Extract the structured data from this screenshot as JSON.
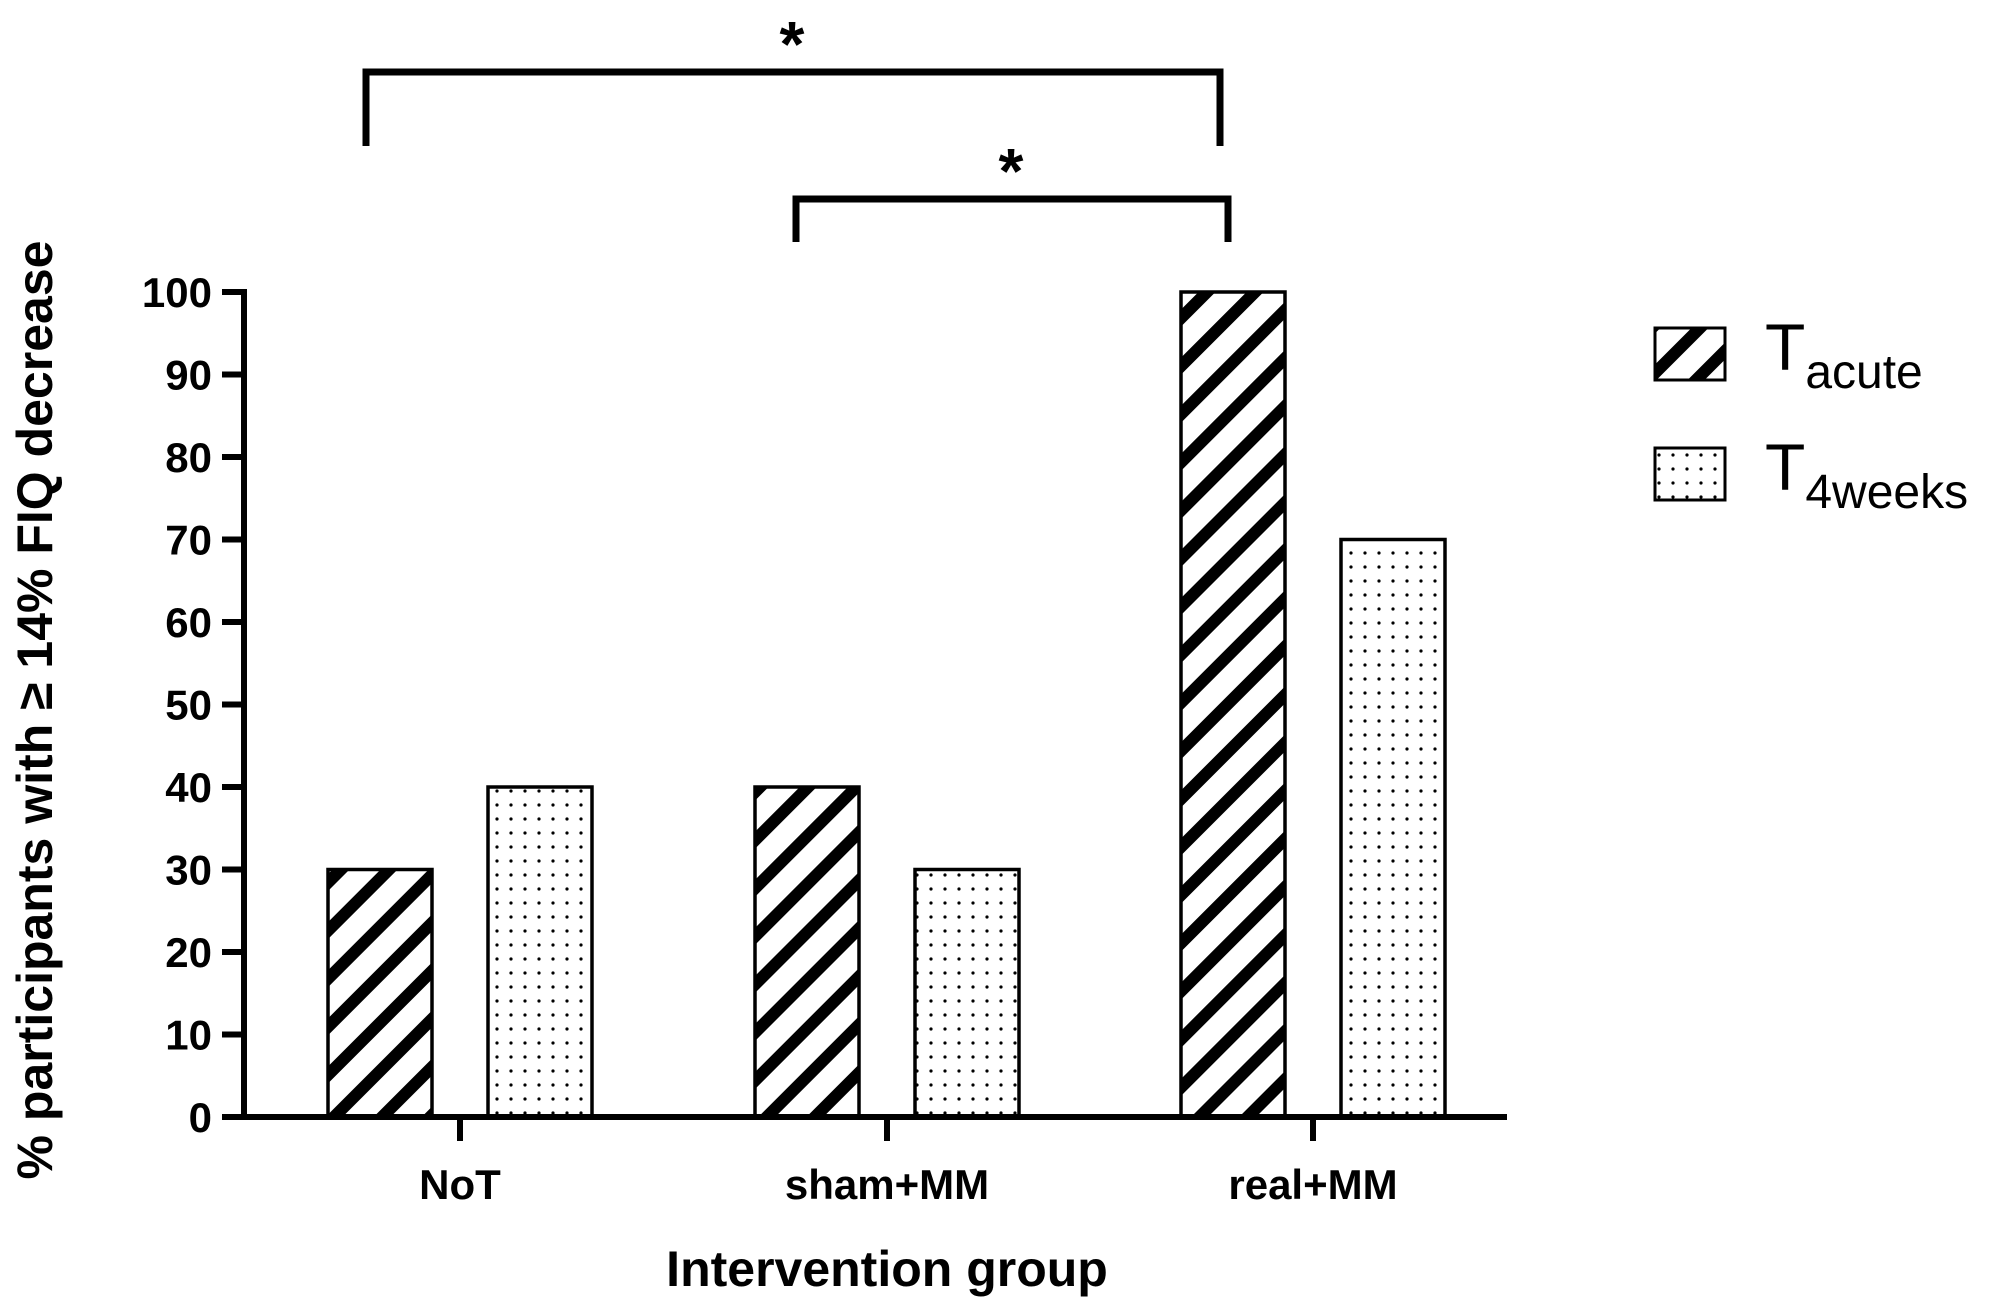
{
  "chart_data": {
    "type": "bar",
    "title": "",
    "xlabel": "Intervention group",
    "ylabel": "% participants with ≥  14% FIQ decrease",
    "categories": [
      "NoT",
      "sham+MM",
      "real+MM"
    ],
    "series": [
      {
        "name": "T",
        "name_subscript": "acute",
        "pattern": "diagonal-hatch",
        "values": [
          30,
          40,
          100
        ]
      },
      {
        "name": "T",
        "name_subscript": "4weeks",
        "pattern": "dotted",
        "values": [
          40,
          30,
          70
        ]
      }
    ],
    "ylim": [
      0,
      100
    ],
    "yticks": [
      "0",
      "10",
      "20",
      "30",
      "40",
      "50",
      "60",
      "70",
      "80",
      "90",
      "100"
    ],
    "grid": false,
    "legend_position": "right",
    "significance": [
      {
        "from_category": "NoT",
        "to_category": "real+MM",
        "label": "*"
      },
      {
        "from_category": "sham+MM",
        "to_category": "real+MM",
        "label": "*"
      }
    ],
    "colors": {
      "bar_stroke": "#000000",
      "bar_fill": "#ffffff",
      "ink": "#000000"
    }
  }
}
